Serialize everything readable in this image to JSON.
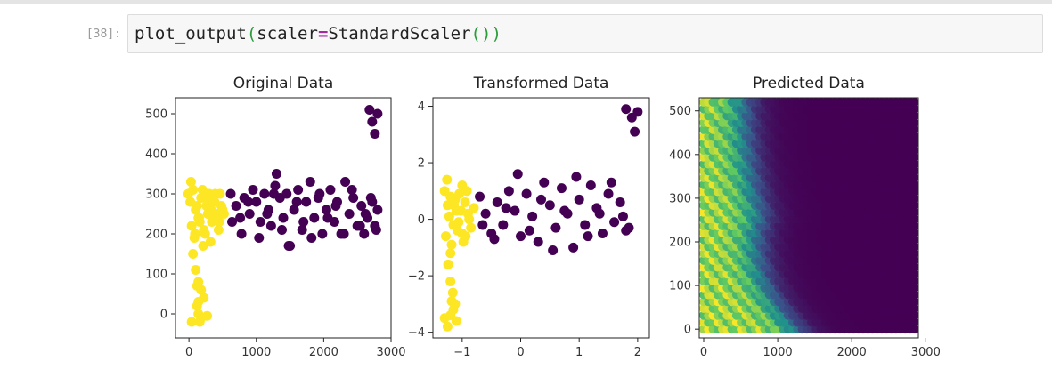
{
  "cell": {
    "prompt": "[38]:",
    "code_func": "plot_output",
    "code_open": "(",
    "code_arg": "scaler",
    "code_eq": "=",
    "code_value": "StandardScaler",
    "code_call": "()",
    "code_close": ")"
  },
  "colors": {
    "class_0": "#440154",
    "class_1": "#fde725",
    "viridis": [
      "#440154",
      "#3b528b",
      "#21918c",
      "#5ec962",
      "#fde725"
    ]
  },
  "chart_data": [
    {
      "type": "scatter",
      "title": "Original Data",
      "xlim": [
        -200,
        3000
      ],
      "ylim": [
        -60,
        540
      ],
      "xticks": [
        "0",
        "1000",
        "2000",
        "3000"
      ],
      "yticks": [
        "0",
        "100",
        "200",
        "300",
        "400",
        "500"
      ],
      "x_tick_values": [
        0,
        1000,
        2000,
        3000
      ],
      "y_tick_values": [
        0,
        100,
        200,
        300,
        400,
        500
      ],
      "series": [
        {
          "class": 0,
          "x": [
            620,
            700,
            760,
            820,
            900,
            950,
            1000,
            1060,
            1120,
            1180,
            1220,
            1280,
            1300,
            1350,
            1400,
            1450,
            1500,
            1560,
            1620,
            1680,
            1740,
            1800,
            1860,
            1920,
            1980,
            2040,
            2100,
            2160,
            2200,
            2260,
            2320,
            2380,
            2440,
            2500,
            2560,
            2600,
            2650,
            2700,
            2760,
            2800,
            640,
            780,
            880,
            1040,
            1160,
            1260,
            1380,
            1480,
            1600,
            1700,
            1820,
            1940,
            2060,
            2180,
            2300,
            2420,
            2540,
            2620,
            2720,
            2780,
            2680,
            2720,
            2760,
            2800
          ],
          "y": [
            300,
            270,
            240,
            290,
            250,
            310,
            280,
            230,
            300,
            260,
            220,
            320,
            350,
            290,
            240,
            300,
            170,
            260,
            310,
            210,
            280,
            330,
            240,
            290,
            200,
            260,
            310,
            230,
            280,
            200,
            330,
            250,
            290,
            220,
            270,
            200,
            240,
            290,
            220,
            260,
            230,
            200,
            280,
            190,
            250,
            300,
            210,
            170,
            280,
            230,
            190,
            300,
            240,
            270,
            200,
            310,
            220,
            250,
            280,
            210,
            510,
            480,
            450,
            500
          ]
        },
        {
          "class": 1,
          "x": [
            -10,
            20,
            60,
            100,
            140,
            180,
            220,
            260,
            300,
            340,
            380,
            420,
            460,
            500,
            40,
            80,
            120,
            160,
            200,
            240,
            280,
            320,
            360,
            400,
            440,
            480,
            30,
            90,
            150,
            210,
            270,
            330,
            390,
            450,
            520,
            60,
            100,
            140,
            180,
            220,
            120,
            140,
            160,
            180,
            120,
            40,
            140,
            270
          ],
          "y": [
            300,
            280,
            310,
            260,
            240,
            290,
            210,
            270,
            300,
            230,
            280,
            250,
            300,
            260,
            220,
            190,
            270,
            230,
            310,
            200,
            250,
            180,
            290,
            240,
            210,
            270,
            330,
            200,
            240,
            170,
            290,
            260,
            300,
            230,
            250,
            150,
            110,
            80,
            60,
            40,
            20,
            0,
            -20,
            -10,
            70,
            -20,
            30,
            -5
          ]
        }
      ]
    },
    {
      "type": "scatter",
      "title": "Transformed Data",
      "xlim": [
        -1.5,
        2.2
      ],
      "ylim": [
        -4.2,
        4.3
      ],
      "xticks": [
        "−1",
        "0",
        "1",
        "2"
      ],
      "yticks": [
        "−4",
        "−2",
        "0",
        "2",
        "4"
      ],
      "x_tick_values": [
        -1,
        0,
        1,
        2
      ],
      "y_tick_values": [
        -4,
        -2,
        0,
        2,
        4
      ],
      "series": [
        {
          "class": 0,
          "x": [
            -0.7,
            -0.6,
            -0.5,
            -0.4,
            -0.3,
            -0.2,
            -0.1,
            0,
            0.1,
            0.2,
            0.3,
            0.4,
            0.5,
            0.6,
            0.7,
            0.8,
            0.9,
            1.0,
            1.1,
            1.2,
            1.3,
            1.4,
            1.5,
            1.6,
            1.7,
            1.8,
            -0.65,
            -0.45,
            -0.25,
            -0.05,
            0.15,
            0.35,
            0.55,
            0.75,
            0.95,
            1.15,
            1.35,
            1.55,
            1.75,
            1.85,
            1.8,
            1.9,
            1.95,
            2.0
          ],
          "y": [
            0.8,
            0.2,
            -0.5,
            0.6,
            -0.2,
            1.0,
            0.3,
            -0.6,
            0.9,
            0.1,
            -0.8,
            1.3,
            0.5,
            -0.3,
            1.1,
            0.2,
            -1.0,
            0.7,
            -0.2,
            1.2,
            0.4,
            -0.5,
            0.9,
            -0.1,
            0.6,
            -0.4,
            -0.2,
            -0.7,
            0.4,
            1.6,
            -0.4,
            0.7,
            -1.1,
            0.3,
            1.5,
            -0.6,
            0.2,
            1.3,
            0.1,
            -0.3,
            3.9,
            3.6,
            3.1,
            3.8
          ]
        },
        {
          "class": 1,
          "x": [
            -1.3,
            -1.25,
            -1.2,
            -1.15,
            -1.1,
            -1.05,
            -1.0,
            -0.95,
            -0.9,
            -0.85,
            -0.8,
            -1.28,
            -1.22,
            -1.18,
            -1.12,
            -1.08,
            -1.02,
            -0.98,
            -0.92,
            -0.88,
            -1.26,
            -1.2,
            -1.14,
            -1.06,
            -1.0,
            -0.94,
            -1.24,
            -1.2,
            -1.16,
            -1.12,
            -1.2,
            -1.15,
            -1.1,
            -1.25,
            -1.18,
            -1.3
          ],
          "y": [
            1.0,
            0.5,
            0.8,
            -0.2,
            0.3,
            0.9,
            -0.5,
            0.6,
            0.2,
            -0.3,
            0.4,
            -0.6,
            0.1,
            -0.9,
            0.7,
            -0.4,
            0.3,
            -0.8,
            1.0,
            0.0,
            1.4,
            -1.2,
            0.5,
            -0.1,
            1.2,
            -0.6,
            -1.6,
            -2.2,
            -2.6,
            -3.0,
            -3.4,
            -3.2,
            -3.6,
            -3.8,
            -2.9,
            -3.5
          ]
        }
      ]
    },
    {
      "type": "heatmap",
      "title": "Predicted Data",
      "xlim": [
        -60,
        2900
      ],
      "ylim": [
        -20,
        530
      ],
      "xticks": [
        "0",
        "1000",
        "2000",
        "3000"
      ],
      "yticks": [
        "0",
        "100",
        "200",
        "300",
        "400",
        "500"
      ],
      "x_tick_values": [
        0,
        1000,
        2000,
        3000
      ],
      "y_tick_values": [
        0,
        100,
        200,
        300,
        400,
        500
      ],
      "x_range": [
        0,
        2850
      ],
      "y_range": [
        0,
        520
      ],
      "colormap": "viridis"
    }
  ]
}
